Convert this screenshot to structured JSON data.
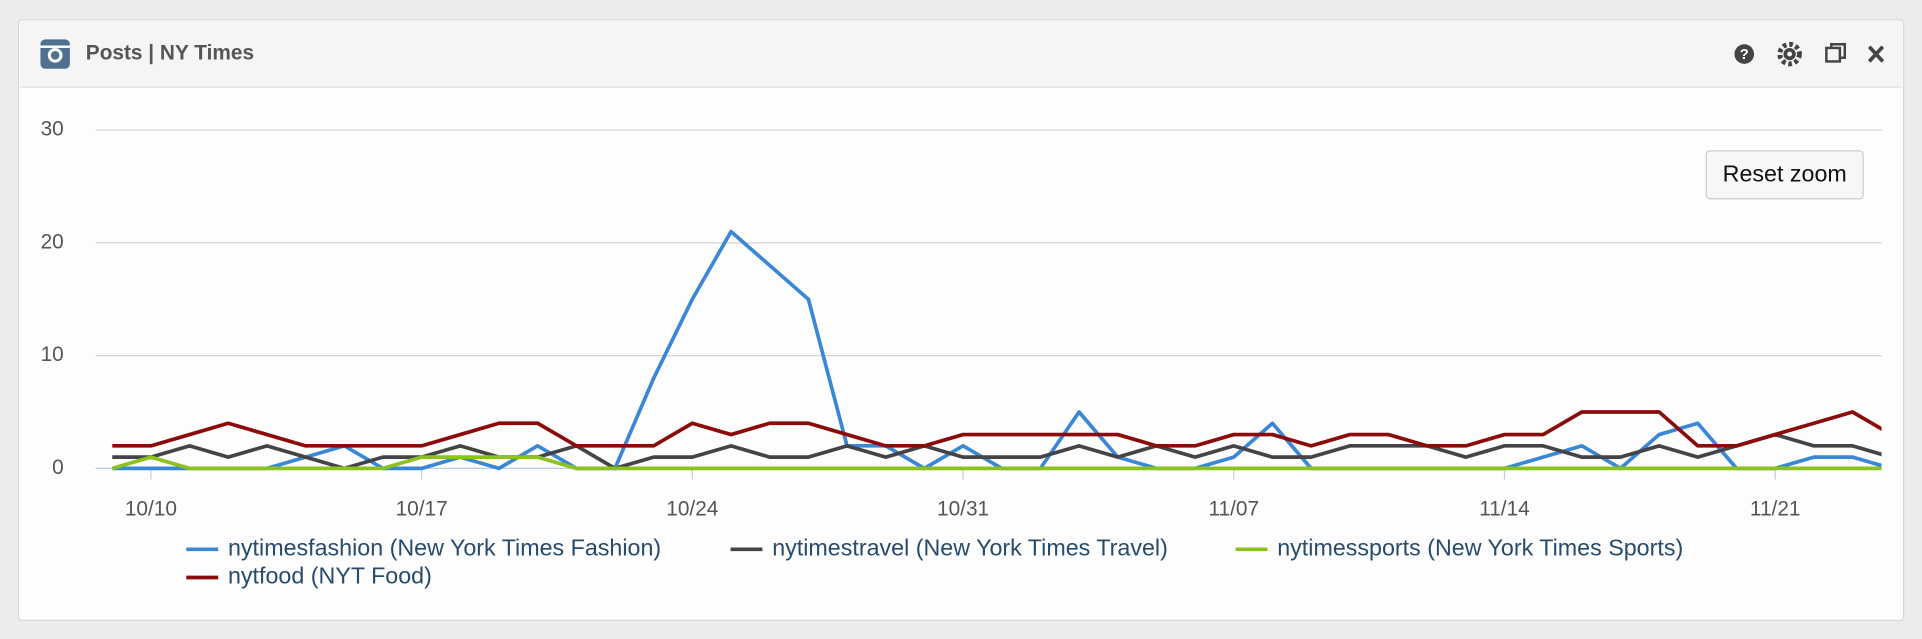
{
  "chart_data": {
    "type": "line",
    "title": "Posts | NY Times",
    "button": "Reset zoom",
    "x": [
      -1,
      0,
      1,
      2,
      3,
      4,
      5,
      6,
      7,
      8,
      9,
      10,
      11,
      12,
      13,
      14,
      15,
      16,
      17,
      18,
      19,
      20,
      21,
      22,
      23,
      24,
      25,
      26,
      27,
      28,
      29,
      30,
      31,
      32,
      33,
      34,
      35,
      36,
      37,
      38,
      39,
      40,
      41,
      42,
      43,
      44,
      45
    ],
    "xlim": [
      -1.43,
      44.75
    ],
    "xticks": [
      {
        "value": 0,
        "label": "10/10"
      },
      {
        "value": 7,
        "label": "10/17"
      },
      {
        "value": 14,
        "label": "10/24"
      },
      {
        "value": 21,
        "label": "10/31"
      },
      {
        "value": 28,
        "label": "11/07"
      },
      {
        "value": 35,
        "label": "11/14"
      },
      {
        "value": 42,
        "label": "11/21"
      }
    ],
    "ylim": [
      0,
      30
    ],
    "yticks": [
      0,
      10,
      20,
      30
    ],
    "grid": true,
    "series": [
      {
        "name": "nytimesfashion (New York Times Fashion)",
        "color": "#3a87d6",
        "values": [
          0,
          0,
          0,
          0,
          0,
          1,
          2,
          0,
          0,
          1,
          0,
          2,
          0,
          0,
          8,
          15,
          21,
          18,
          15,
          2,
          2,
          0,
          2,
          0,
          0,
          5,
          1,
          0,
          0,
          1,
          4,
          0,
          0,
          0,
          0,
          0,
          0,
          1,
          2,
          0,
          3,
          4,
          0,
          0,
          1,
          1,
          0
        ]
      },
      {
        "name": "nytimestravel (New York Times Travel)",
        "color": "#434348",
        "values": [
          1,
          1,
          2,
          1,
          2,
          1,
          0,
          1,
          1,
          2,
          1,
          1,
          2,
          0,
          1,
          1,
          2,
          1,
          1,
          2,
          1,
          2,
          1,
          1,
          1,
          2,
          1,
          2,
          1,
          2,
          1,
          1,
          2,
          2,
          2,
          1,
          2,
          2,
          1,
          1,
          2,
          1,
          2,
          3,
          2,
          2,
          1
        ]
      },
      {
        "name": "nytimessports (New York Times Sports)",
        "color": "#8bc21f",
        "values": [
          0,
          1,
          0,
          0,
          0,
          0,
          0,
          0,
          1,
          1,
          1,
          1,
          0,
          0,
          0,
          0,
          0,
          0,
          0,
          0,
          0,
          0,
          0,
          0,
          0,
          0,
          0,
          0,
          0,
          0,
          0,
          0,
          0,
          0,
          0,
          0,
          0,
          0,
          0,
          0,
          0,
          0,
          0,
          0,
          0,
          0,
          0
        ]
      },
      {
        "name": "nytfood (NYT Food)",
        "color": "#8b0a0a",
        "values": [
          2,
          2,
          3,
          4,
          3,
          2,
          2,
          2,
          2,
          3,
          4,
          4,
          2,
          2,
          2,
          4,
          3,
          4,
          4,
          3,
          2,
          2,
          3,
          3,
          3,
          3,
          3,
          2,
          2,
          3,
          3,
          2,
          3,
          3,
          2,
          2,
          3,
          3,
          5,
          5,
          5,
          2,
          2,
          3,
          4,
          5,
          3
        ]
      }
    ]
  }
}
